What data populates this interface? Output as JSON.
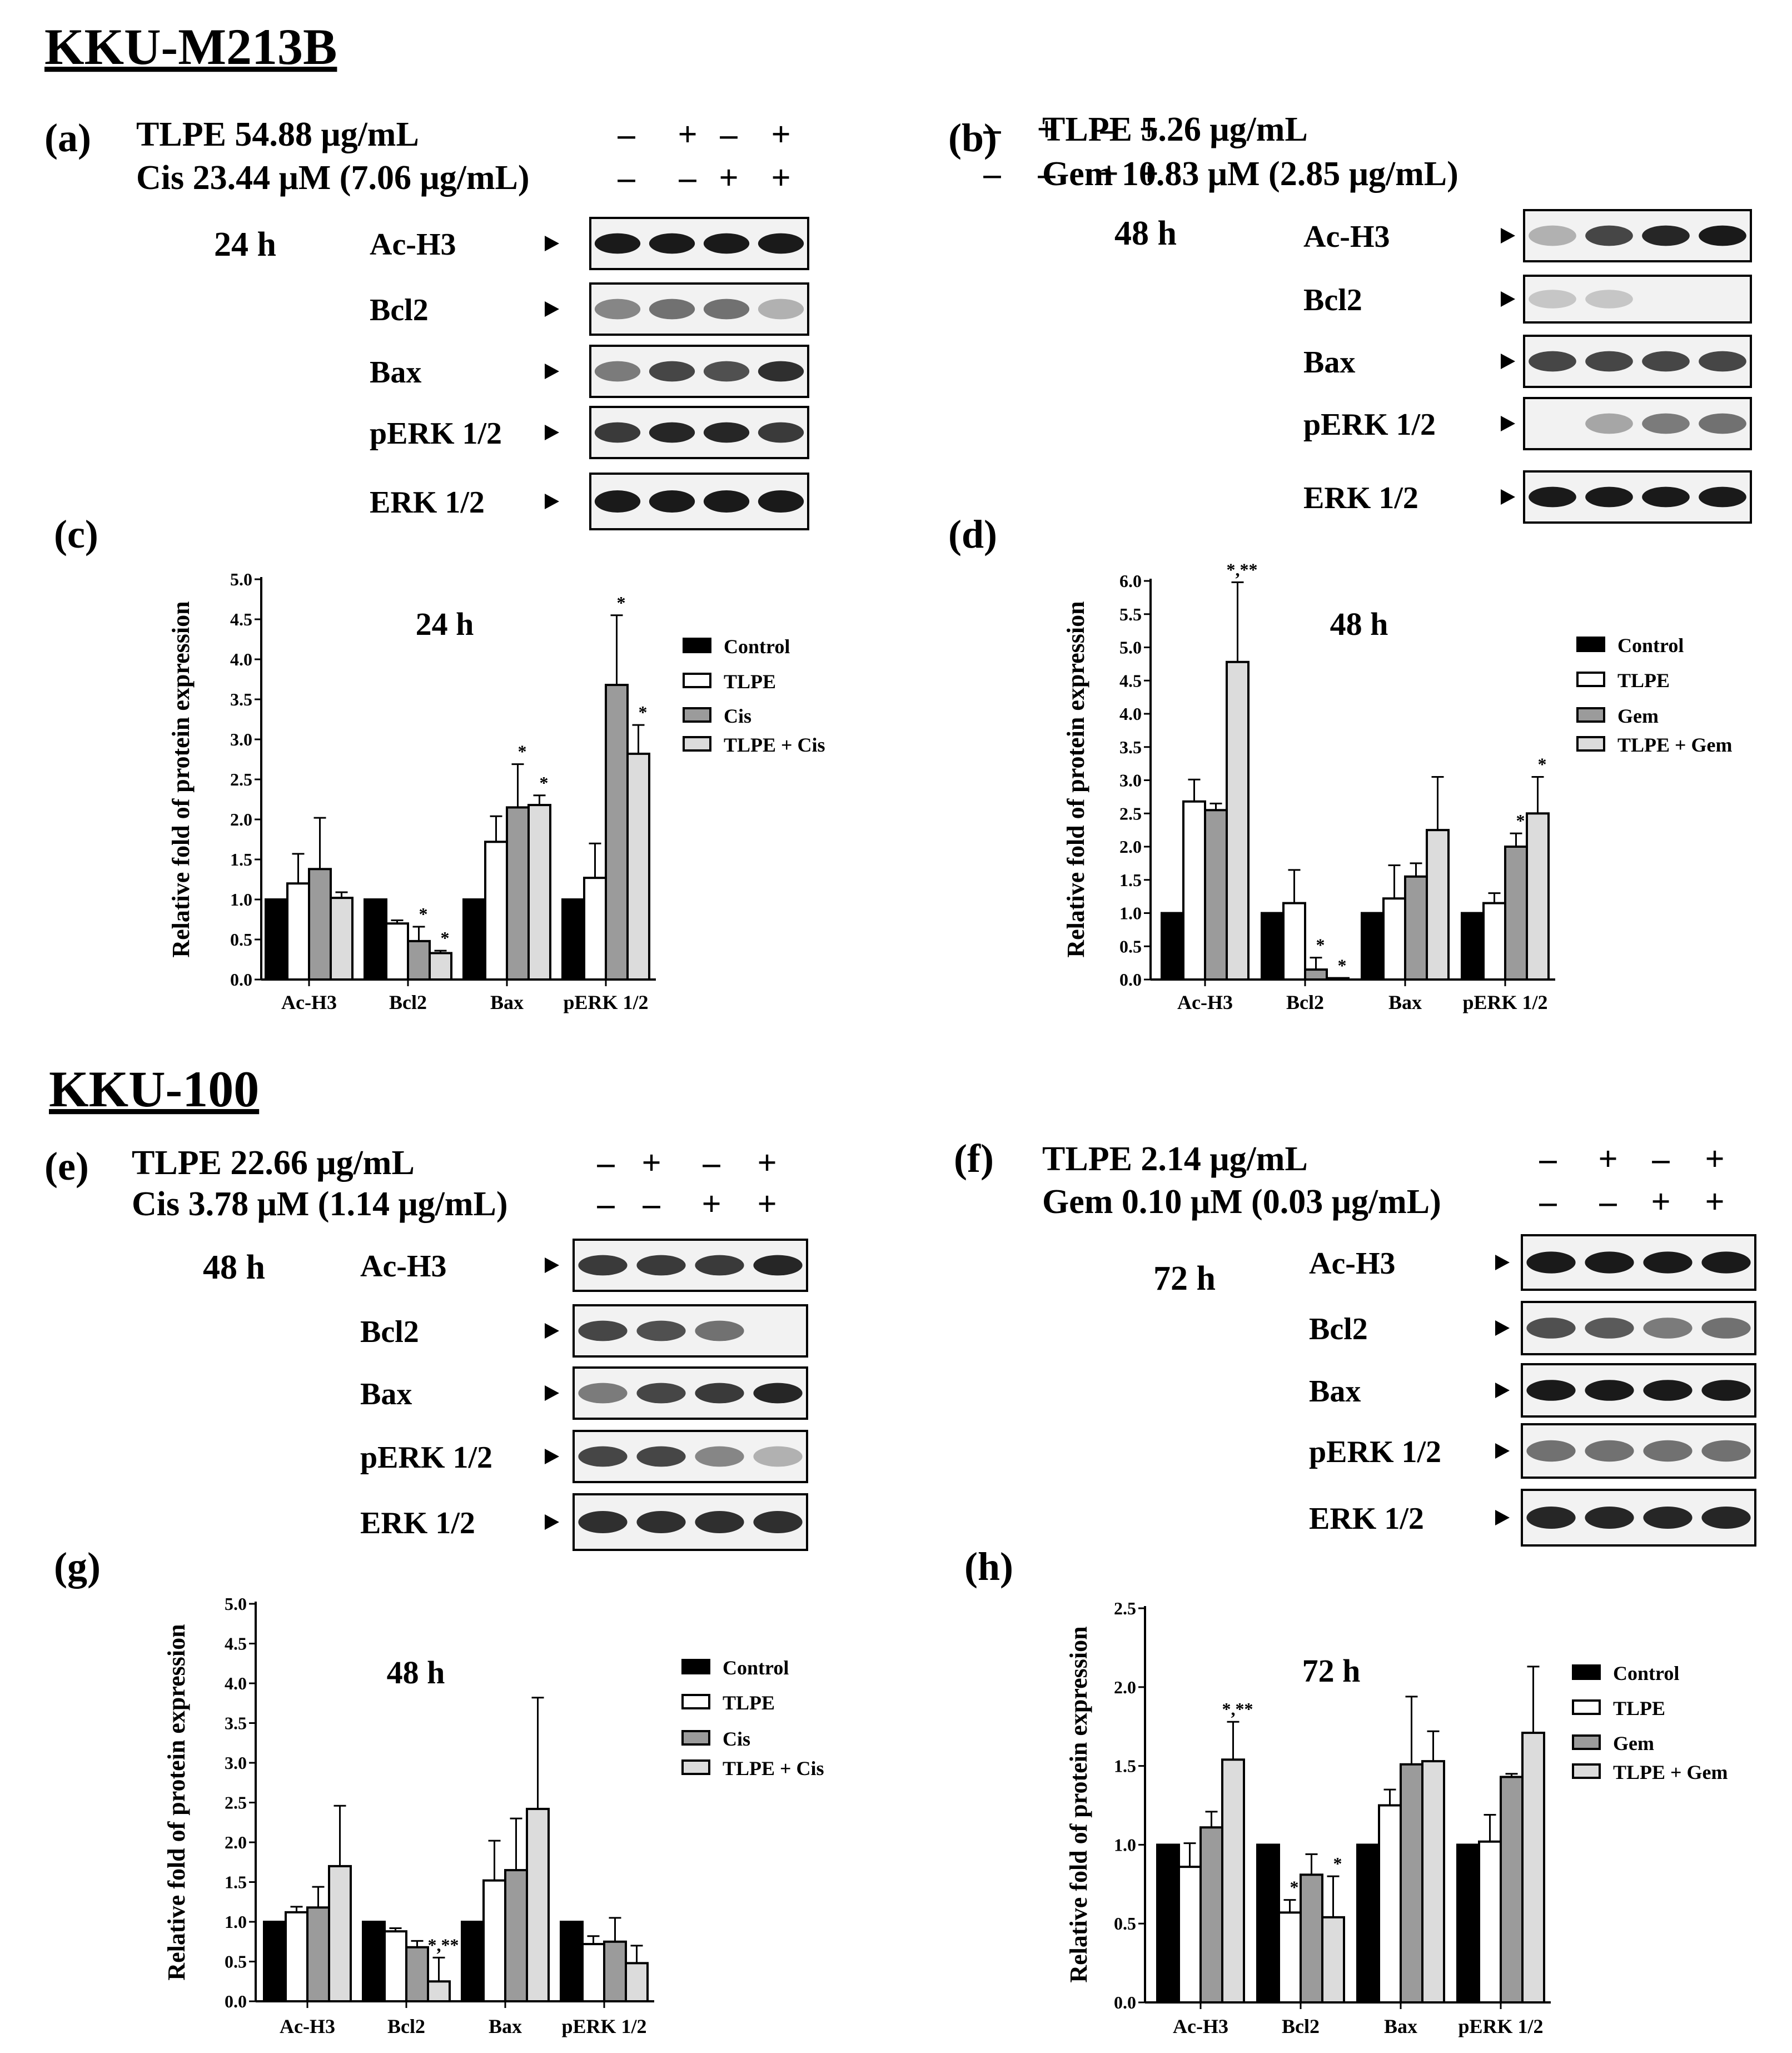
{
  "titles": {
    "m213b": "KKU-M213B",
    "k100": "KKU-100"
  },
  "panel_labels": {
    "a": "(a)",
    "b": "(b)",
    "c": "(c)",
    "d": "(d)",
    "e": "(e)",
    "f": "(f)",
    "g": "(g)",
    "h": "(h)"
  },
  "blots": {
    "a": {
      "line1": "TLPE  54.88 μg/mL",
      "line2": "Cis 23.44 μM (7.06 μg/mL)",
      "signs1": [
        "–",
        "+",
        "–",
        "+"
      ],
      "signs2": [
        "–",
        "–",
        "+",
        "+"
      ],
      "time": "24 h",
      "proteins": [
        "Ac-H3",
        "Bcl2",
        "Bax",
        "pERK 1/2",
        "ERK 1/2"
      ]
    },
    "b": {
      "line1": "TLPE  5.26 μg/mL",
      "line2": "Gem 10.83 μM (2.85 μg/mL)",
      "signs1": [
        "–",
        "+",
        "–",
        "+"
      ],
      "signs2": [
        "–",
        "–",
        "+",
        "+"
      ],
      "time": "48 h",
      "proteins": [
        "Ac-H3",
        "Bcl2",
        "Bax",
        "pERK 1/2",
        "ERK 1/2"
      ]
    },
    "e": {
      "line1": "TLPE  22.66 μg/mL",
      "line2": "Cis 3.78 μM (1.14 μg/mL)",
      "signs1": [
        "–",
        "+",
        "–",
        "+"
      ],
      "signs2": [
        "–",
        "–",
        "+",
        "+"
      ],
      "time": "48 h",
      "proteins": [
        "Ac-H3",
        "Bcl2",
        "Bax",
        "pERK 1/2",
        "ERK 1/2"
      ]
    },
    "f": {
      "line1": "TLPE  2.14 μg/mL",
      "line2": "Gem 0.10 μM (0.03 μg/mL)",
      "signs1": [
        "–",
        "+",
        "–",
        "+"
      ],
      "signs2": [
        "–",
        "–",
        "+",
        "+"
      ],
      "time": "72 h",
      "proteins": [
        "Ac-H3",
        "Bcl2",
        "Bax",
        "pERK 1/2",
        "ERK 1/2"
      ]
    }
  },
  "chart_data": [
    {
      "id": "c",
      "type": "bar",
      "title": "24 h",
      "ylabel": "Relative fold of protein expression",
      "categories": [
        "Ac-H3",
        "Bcl2",
        "Bax",
        "pERK 1/2"
      ],
      "ylim": [
        0,
        5.0
      ],
      "yticks_step": 0.5,
      "tick_decimals": 1,
      "series": [
        {
          "name": "Control",
          "values": [
            1.0,
            1.0,
            1.0,
            1.0
          ],
          "errors": [
            0,
            0,
            0,
            0
          ],
          "stars": [
            "",
            "",
            "",
            ""
          ]
        },
        {
          "name": "TLPE",
          "values": [
            1.2,
            0.7,
            1.72,
            1.27
          ],
          "errors": [
            0.37,
            0.04,
            0.32,
            0.43
          ],
          "stars": [
            "",
            "",
            "",
            ""
          ]
        },
        {
          "name": "Cis",
          "values": [
            1.38,
            0.48,
            2.15,
            3.68
          ],
          "errors": [
            0.64,
            0.18,
            0.54,
            0.87
          ],
          "stars": [
            "",
            "*",
            "*",
            "*"
          ]
        },
        {
          "name": "TLPE  + Cis",
          "values": [
            1.02,
            0.33,
            2.18,
            2.82
          ],
          "errors": [
            0.07,
            0.03,
            0.12,
            0.36
          ],
          "stars": [
            "",
            "*",
            "*",
            "*"
          ]
        }
      ]
    },
    {
      "id": "d",
      "type": "bar",
      "title": "48 h",
      "ylabel": "Relative fold of protein expression",
      "categories": [
        "Ac-H3",
        "Bcl2",
        "Bax",
        "pERK 1/2"
      ],
      "ylim": [
        0,
        6.0
      ],
      "yticks_step": 0.5,
      "tick_decimals": 1,
      "series": [
        {
          "name": "Control",
          "values": [
            1.0,
            1.0,
            1.0,
            1.0
          ],
          "errors": [
            0,
            0,
            0,
            0
          ],
          "stars": [
            "",
            "",
            "",
            ""
          ]
        },
        {
          "name": "TLPE",
          "values": [
            2.68,
            1.15,
            1.22,
            1.15
          ],
          "errors": [
            0.33,
            0.5,
            0.5,
            0.15
          ],
          "stars": [
            "",
            "",
            "",
            ""
          ]
        },
        {
          "name": "Gem",
          "values": [
            2.55,
            0.15,
            1.55,
            2.0
          ],
          "errors": [
            0.1,
            0.18,
            0.2,
            0.2
          ],
          "stars": [
            "",
            "*",
            "",
            "*"
          ]
        },
        {
          "name": "TLPE  + Gem",
          "values": [
            4.78,
            0.02,
            2.25,
            2.5
          ],
          "errors": [
            1.2,
            0,
            0.8,
            0.55
          ],
          "stars": [
            "*,**",
            "*",
            "",
            "*"
          ]
        }
      ]
    },
    {
      "id": "g",
      "type": "bar",
      "title": "48 h",
      "ylabel": "Relative fold of protein expression",
      "categories": [
        "Ac-H3",
        "Bcl2",
        "Bax",
        "pERK 1/2"
      ],
      "ylim": [
        0,
        5.0
      ],
      "yticks_step": 0.5,
      "tick_decimals": 1,
      "series": [
        {
          "name": "Control",
          "values": [
            1.0,
            1.0,
            1.0,
            1.0
          ],
          "errors": [
            0,
            0,
            0,
            0
          ],
          "stars": [
            "",
            "",
            "",
            ""
          ]
        },
        {
          "name": "TLPE",
          "values": [
            1.12,
            0.88,
            1.52,
            0.72
          ],
          "errors": [
            0.07,
            0.04,
            0.5,
            0.1
          ],
          "stars": [
            "",
            "",
            "",
            ""
          ]
        },
        {
          "name": "Cis",
          "values": [
            1.18,
            0.68,
            1.65,
            0.75
          ],
          "errors": [
            0.26,
            0.08,
            0.65,
            0.3
          ],
          "stars": [
            "",
            "",
            "",
            ""
          ]
        },
        {
          "name": "TLPE  + Cis",
          "values": [
            1.7,
            0.25,
            2.42,
            0.48
          ],
          "errors": [
            0.76,
            0.3,
            1.4,
            0.22
          ],
          "stars": [
            "",
            "*,**",
            "",
            ""
          ]
        }
      ]
    },
    {
      "id": "h",
      "type": "bar",
      "title": "72 h",
      "ylabel": "Relative fold of protein expression",
      "categories": [
        "Ac-H3",
        "Bcl2",
        "Bax",
        "pERK 1/2"
      ],
      "ylim": [
        0,
        2.5
      ],
      "yticks_step": 0.5,
      "tick_decimals": 1,
      "series": [
        {
          "name": "Control",
          "values": [
            1.0,
            1.0,
            1.0,
            1.0
          ],
          "errors": [
            0,
            0,
            0,
            0
          ],
          "stars": [
            "",
            "",
            "",
            ""
          ]
        },
        {
          "name": "TLPE",
          "values": [
            0.86,
            0.57,
            1.25,
            1.02
          ],
          "errors": [
            0.15,
            0.08,
            0.1,
            0.17
          ],
          "stars": [
            "",
            "*",
            "",
            ""
          ]
        },
        {
          "name": "Gem",
          "values": [
            1.11,
            0.81,
            1.51,
            1.43
          ],
          "errors": [
            0.1,
            0.13,
            0.43,
            0.02
          ],
          "stars": [
            "",
            "",
            "",
            ""
          ]
        },
        {
          "name": "TLPE + Gem",
          "values": [
            1.54,
            0.54,
            1.53,
            1.71
          ],
          "errors": [
            0.24,
            0.26,
            0.19,
            0.42
          ],
          "stars": [
            "*,**",
            "*",
            "",
            ""
          ]
        }
      ]
    }
  ]
}
